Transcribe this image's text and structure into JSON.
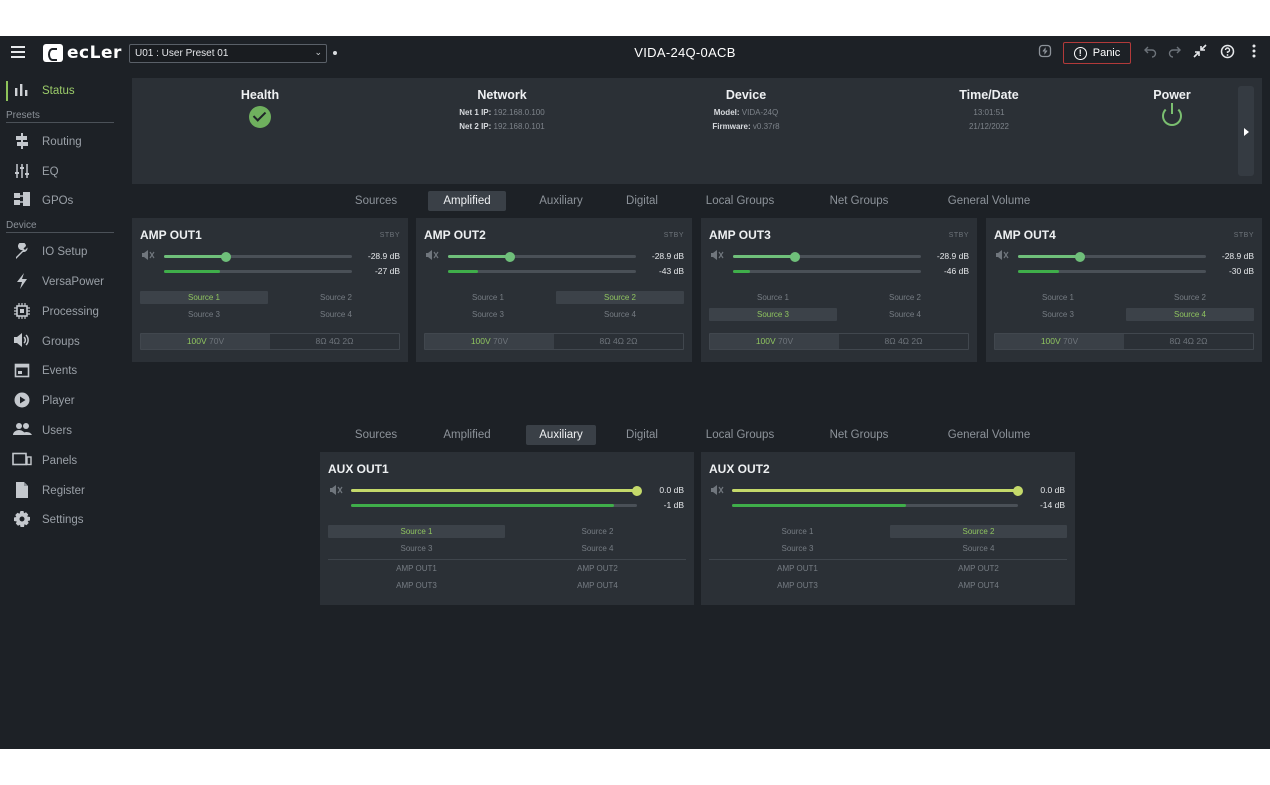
{
  "topbar": {
    "logo_text": "ecLer",
    "preset": "U01 : User Preset 01",
    "device_name": "VIDA-24Q-0ACB",
    "panic_label": "Panic"
  },
  "sidebar": {
    "items_top": [
      {
        "label": "Status",
        "icon": "bar-chart-icon"
      }
    ],
    "section_presets": "Presets",
    "items_presets": [
      {
        "label": "Routing",
        "icon": "routing-icon"
      },
      {
        "label": "EQ",
        "icon": "eq-icon"
      },
      {
        "label": "GPOs",
        "icon": "gpo-icon"
      }
    ],
    "section_device": "Device",
    "items_device": [
      {
        "label": "IO Setup",
        "icon": "wrench-icon"
      },
      {
        "label": "VersaPower",
        "icon": "bolt-icon"
      },
      {
        "label": "Processing",
        "icon": "chip-icon"
      },
      {
        "label": "Groups",
        "icon": "speaker-icon"
      },
      {
        "label": "Events",
        "icon": "calendar-icon"
      },
      {
        "label": "Player",
        "icon": "play-icon"
      },
      {
        "label": "Users",
        "icon": "users-icon"
      },
      {
        "label": "Panels",
        "icon": "panels-icon"
      },
      {
        "label": "Register",
        "icon": "document-icon"
      },
      {
        "label": "Settings",
        "icon": "gear-icon"
      }
    ]
  },
  "status": {
    "health_title": "Health",
    "network_title": "Network",
    "net1_label": "Net 1 IP:",
    "net1_value": "192.168.0.100",
    "net2_label": "Net 2 IP:",
    "net2_value": "192.168.0.101",
    "device_title": "Device",
    "model_label": "Model:",
    "model_value": "VIDA-24Q",
    "firmware_label": "Firmware:",
    "firmware_value": "v0.37r8",
    "time_title": "Time/Date",
    "time_value": "13:01:51",
    "date_value": "21/12/2022",
    "power_title": "Power"
  },
  "tabs": [
    "Sources",
    "Amplified",
    "Auxiliary",
    "Digital",
    "Local Groups",
    "Net Groups",
    "General Volume"
  ],
  "amp_outs": [
    {
      "title": "AMP OUT1",
      "stby": "STBY",
      "volume_db": "-28.9 dB",
      "volume_frac": 0.33,
      "level_db": "-27 dB",
      "level_frac": 0.3,
      "selected_source": 0,
      "voltage_selected": true
    },
    {
      "title": "AMP OUT2",
      "stby": "STBY",
      "volume_db": "-28.9 dB",
      "volume_frac": 0.33,
      "level_db": "-43 dB",
      "level_frac": 0.16,
      "selected_source": 1,
      "voltage_selected": true
    },
    {
      "title": "AMP OUT3",
      "stby": "STBY",
      "volume_db": "-28.9 dB",
      "volume_frac": 0.33,
      "level_db": "-46 dB",
      "level_frac": 0.09,
      "selected_source": 2,
      "voltage_selected": true
    },
    {
      "title": "AMP OUT4",
      "stby": "STBY",
      "volume_db": "-28.9 dB",
      "volume_frac": 0.33,
      "level_db": "-30 dB",
      "level_frac": 0.22,
      "selected_source": 3,
      "voltage_selected": true
    }
  ],
  "sources": [
    "Source 1",
    "Source 2",
    "Source 3",
    "Source 4"
  ],
  "voltage": {
    "v100": "100V",
    "v70": "70V"
  },
  "impedance": {
    "i8": "8Ω",
    "i4": "4Ω",
    "i2": "2Ω"
  },
  "aux_outs": [
    {
      "title": "AUX OUT1",
      "volume_db": "0.0 dB",
      "volume_frac": 1.0,
      "level_db": "-1 dB",
      "level_frac": 0.92,
      "selected_source": 0
    },
    {
      "title": "AUX OUT2",
      "volume_db": "0.0 dB",
      "volume_frac": 1.0,
      "level_db": "-14 dB",
      "level_frac": 0.61,
      "selected_source": 1
    }
  ],
  "aux_amp_sources": [
    "AMP OUT1",
    "AMP OUT2",
    "AMP OUT3",
    "AMP OUT4"
  ],
  "colors": {
    "accent_green": "#8fc45f",
    "volume_knob_amp": "#6fbf7a",
    "volume_knob_aux": "#c4d96a",
    "level_green": "#3fae4a",
    "panic_border": "#b23a3a"
  }
}
